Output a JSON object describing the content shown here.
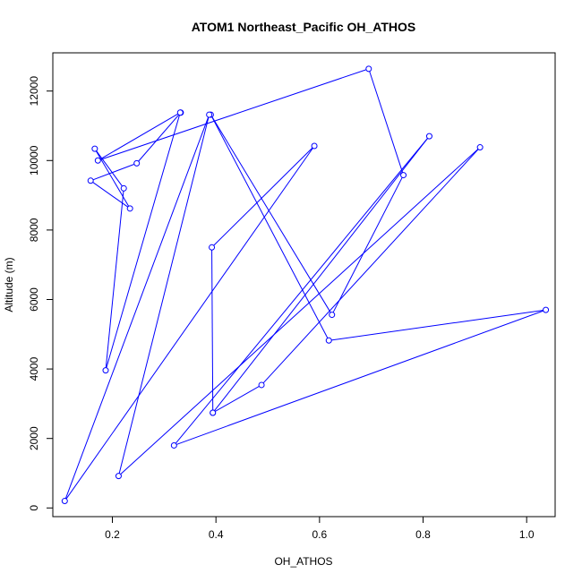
{
  "chart_data": {
    "type": "line",
    "title": "ATOM1 Northeast_Pacific OH_ATHOS",
    "xlabel": "OH_ATHOS",
    "ylabel": "Altitude (m)",
    "xlim": [
      0.085,
      1.055
    ],
    "ylim": [
      -250,
      13100
    ],
    "x_ticks": [
      0.2,
      0.4,
      0.6,
      0.8,
      1.0
    ],
    "x_tick_labels": [
      "0.2",
      "0.4",
      "0.6",
      "0.8",
      "1.0"
    ],
    "y_ticks": [
      0,
      2000,
      4000,
      6000,
      8000,
      10000,
      12000
    ],
    "y_tick_labels": [
      "0",
      "2000",
      "4000",
      "6000",
      "8000",
      "10000",
      "12000"
    ],
    "grid": false,
    "color": "#0000ff",
    "series": [
      {
        "x": [
          0.332,
          0.247,
          0.158,
          0.234,
          0.166,
          0.222,
          0.187,
          0.331,
          0.172,
          0.695,
          0.762,
          0.624,
          0.39,
          0.618,
          1.037,
          0.319,
          0.812,
          0.394,
          0.392,
          0.59,
          0.108,
          0.387,
          0.212,
          0.91,
          0.488,
          0.394
        ],
        "y": [
          11380,
          9920,
          9420,
          8620,
          10340,
          9200,
          3960,
          11380,
          10000,
          12640,
          9580,
          5560,
          11320,
          4820,
          5700,
          1800,
          10700,
          2740,
          7500,
          10420,
          200,
          11320,
          920,
          10380,
          3540,
          2740
        ]
      }
    ]
  }
}
